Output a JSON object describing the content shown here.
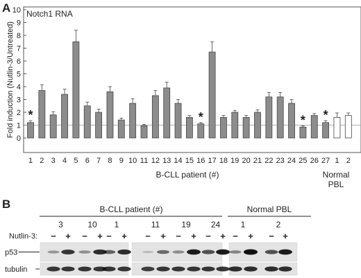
{
  "panel_a": {
    "letter": "A"
  },
  "panel_b": {
    "letter": "B",
    "group_labels": [
      "B-CLL patient (#)",
      "Normal PBL"
    ],
    "patient_ids": [
      "3",
      "10",
      "1",
      "11",
      "19",
      "24",
      "1",
      "2"
    ],
    "treatment_label": "Nutlin-3:",
    "treatment_signs": [
      "−",
      "+"
    ],
    "rows": [
      {
        "label": "p53",
        "intensities": [
          0.25,
          0.8,
          0.3,
          0.85,
          0.55,
          0.85,
          0.05,
          0.5,
          0.3,
          0.95,
          0.65,
          0.95,
          0.35,
          1.0,
          0.65,
          0.95
        ]
      },
      {
        "label": "tubulin",
        "intensities": [
          0.8,
          0.8,
          0.8,
          0.8,
          0.8,
          0.8,
          0.75,
          0.8,
          0.8,
          0.8,
          0.8,
          0.8,
          0.85,
          0.85,
          0.85,
          0.85
        ]
      }
    ]
  },
  "chart_data": {
    "type": "bar",
    "title": "Notch1 RNA",
    "ylabel": "Fold induction (Nutlin-3/Untreated)",
    "xlabel": "B-CLL patient (#)",
    "group2_label": [
      "Normal",
      "PBL"
    ],
    "ylim": [
      0,
      10
    ],
    "yticks": [
      0,
      1,
      2,
      3,
      4,
      5,
      6,
      7,
      8,
      9,
      10
    ],
    "reference_line": 1,
    "categories": [
      "1",
      "2",
      "3",
      "4",
      "5",
      "6",
      "7",
      "8",
      "9",
      "10",
      "11",
      "12",
      "13",
      "14",
      "15",
      "16",
      "17",
      "18",
      "19",
      "20",
      "21",
      "22",
      "23",
      "24",
      "25",
      "26",
      "27",
      "1",
      "2"
    ],
    "values": [
      1.2,
      3.7,
      1.8,
      3.4,
      7.5,
      2.5,
      2.0,
      3.6,
      1.4,
      2.7,
      0.95,
      3.3,
      3.9,
      2.7,
      1.6,
      1.1,
      6.7,
      1.6,
      2.0,
      1.6,
      2.0,
      3.2,
      3.2,
      2.7,
      0.85,
      1.75,
      1.2,
      1.6,
      1.75
    ],
    "errors": [
      0.15,
      0.45,
      0.25,
      0.4,
      0.9,
      0.3,
      0.25,
      0.4,
      0.15,
      0.35,
      0.1,
      0.4,
      0.45,
      0.3,
      0.15,
      0.1,
      0.8,
      0.15,
      0.15,
      0.15,
      0.2,
      0.35,
      0.35,
      0.3,
      0.1,
      0.15,
      0.15,
      0.35,
      0.2
    ],
    "significant": [
      true,
      false,
      false,
      false,
      false,
      false,
      false,
      false,
      false,
      false,
      false,
      false,
      false,
      false,
      false,
      true,
      false,
      false,
      false,
      false,
      false,
      false,
      false,
      false,
      true,
      false,
      true,
      false,
      false
    ],
    "significance_marker": "*",
    "group": [
      "B-CLL",
      "B-CLL",
      "B-CLL",
      "B-CLL",
      "B-CLL",
      "B-CLL",
      "B-CLL",
      "B-CLL",
      "B-CLL",
      "B-CLL",
      "B-CLL",
      "B-CLL",
      "B-CLL",
      "B-CLL",
      "B-CLL",
      "B-CLL",
      "B-CLL",
      "B-CLL",
      "B-CLL",
      "B-CLL",
      "B-CLL",
      "B-CLL",
      "B-CLL",
      "B-CLL",
      "B-CLL",
      "B-CLL",
      "B-CLL",
      "Normal PBL",
      "Normal PBL"
    ],
    "colors": {
      "B-CLL": "#8c8c8c",
      "Normal PBL": "#ffffff"
    }
  }
}
